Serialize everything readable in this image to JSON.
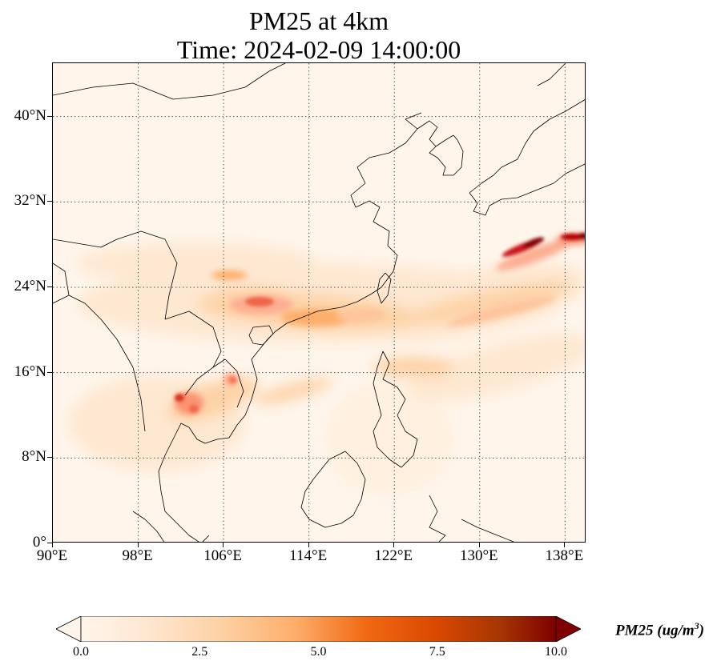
{
  "map": {
    "title_line1": "PM25 at 4km",
    "title_line2": "Time: 2024-02-09 14:00:00",
    "lon_range": [
      90,
      140
    ],
    "lat_range": [
      0,
      45
    ],
    "lat_ticks": [
      "40°N",
      "32°N",
      "24°N",
      "16°N",
      "8°N",
      "0°"
    ],
    "lat_tick_values": [
      40,
      32,
      24,
      16,
      8,
      0
    ],
    "lon_ticks": [
      "90°E",
      "98°E",
      "106°E",
      "114°E",
      "122°E",
      "130°E",
      "138°E"
    ],
    "lon_tick_values": [
      90,
      98,
      106,
      114,
      122,
      130,
      138
    ],
    "grid": "dotted",
    "colormap": "OrRd",
    "colors": {
      "background": "#fff5eb",
      "low": "#fee6ce",
      "mid": "#fdae6b",
      "high": "#d94801",
      "max": "#7f0000",
      "coastline": "#000000"
    }
  },
  "colorbar": {
    "label": "PM25 (ug/m",
    "label_sup": "3",
    "label_close": ")",
    "ticks": [
      "0.0",
      "2.5",
      "5.0",
      "7.5",
      "10.0"
    ],
    "tick_values": [
      0,
      2.5,
      5,
      7.5,
      10
    ],
    "vmin": 0,
    "vmax": 10,
    "extend": "both"
  }
}
